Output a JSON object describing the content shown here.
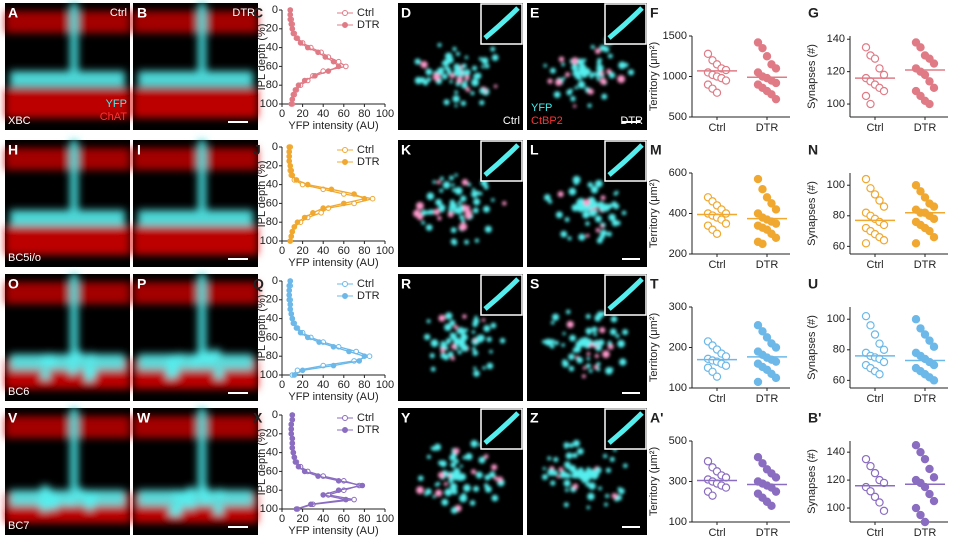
{
  "figure": {
    "rows": [
      {
        "panels": [
          "A",
          "B",
          "C",
          "D",
          "E",
          "F",
          "G"
        ],
        "cell_type": "XBC"
      },
      {
        "panels": [
          "H",
          "I",
          "J",
          "K",
          "L",
          "M",
          "N"
        ],
        "cell_type": "BC5i/o"
      },
      {
        "panels": [
          "O",
          "P",
          "Q",
          "R",
          "S",
          "T",
          "U"
        ],
        "cell_type": "BC6"
      },
      {
        "panels": [
          "V",
          "W",
          "X",
          "Y",
          "Z",
          "A'",
          "B'"
        ],
        "cell_type": "BC7"
      }
    ],
    "first_row_labels": {
      "a_condition": "Ctrl",
      "b_condition": "DTR",
      "a_stain": [
        "YFP",
        "ChAT"
      ],
      "d_condition": "Ctrl",
      "e_stain": [
        "YFP",
        "CtBP2"
      ],
      "e_condition": "DTR"
    }
  },
  "chart_data": [
    {
      "type": "profile",
      "xlabel": "YFP intensity (AU)",
      "ylabel": "IPL depth (%)",
      "legend": "upper right",
      "y": [
        0,
        5,
        10,
        15,
        20,
        25,
        30,
        35,
        40,
        45,
        50,
        55,
        60,
        65,
        70,
        75,
        80,
        85,
        90,
        95,
        100
      ],
      "series": [
        {
          "name": "Ctrl",
          "color": "#e07b86",
          "filled": false,
          "values": [
            8,
            8,
            9,
            10,
            10,
            12,
            15,
            20,
            28,
            38,
            45,
            55,
            62,
            40,
            30,
            25,
            18,
            14,
            12,
            10,
            10
          ]
        },
        {
          "name": "DTR",
          "color": "#e07b86",
          "filled": true,
          "values": [
            8,
            8,
            8,
            9,
            10,
            11,
            14,
            18,
            25,
            35,
            42,
            50,
            55,
            45,
            32,
            22,
            16,
            13,
            11,
            10,
            9
          ]
        }
      ],
      "xlim": [
        0,
        100
      ],
      "xticks": [
        0,
        20,
        40,
        60,
        80,
        100
      ],
      "ylim": [
        0,
        100
      ],
      "yticks": [
        0,
        20,
        40,
        60,
        80,
        100
      ]
    },
    {
      "type": "strip",
      "ylabel": "Territory (μm²)",
      "categories": [
        "Ctrl",
        "DTR"
      ],
      "color": "#e07b86",
      "filled": [
        false,
        true
      ],
      "values": [
        [
          1280,
          1200,
          1150,
          1100,
          1080,
          1050,
          1020,
          1000,
          980,
          950,
          900,
          850,
          800
        ],
        [
          1420,
          1350,
          1250,
          1150,
          1100,
          1050,
          1000,
          980,
          950,
          920,
          900,
          860,
          820,
          780,
          720
        ]
      ],
      "means": [
        1070,
        990
      ],
      "ylim": [
        500,
        1500
      ],
      "yticks": [
        500,
        1000,
        1500
      ]
    },
    {
      "type": "strip",
      "ylabel": "Synapses (#)",
      "categories": [
        "Ctrl",
        "DTR"
      ],
      "color": "#e07b86",
      "filled": [
        false,
        true
      ],
      "values": [
        [
          135,
          130,
          128,
          122,
          118,
          116,
          114,
          112,
          110,
          108,
          105,
          100
        ],
        [
          138,
          135,
          130,
          128,
          125,
          122,
          120,
          118,
          114,
          110,
          108,
          105,
          102,
          100
        ]
      ],
      "means": [
        116,
        121
      ],
      "ylim": [
        92,
        142
      ],
      "yticks": [
        100,
        120,
        140
      ]
    },
    {
      "type": "profile",
      "xlabel": "YFP intensity (AU)",
      "ylabel": "IPL depth (%)",
      "legend": "upper right",
      "y": [
        0,
        5,
        10,
        15,
        20,
        25,
        30,
        35,
        40,
        45,
        50,
        55,
        60,
        65,
        70,
        75,
        80,
        85,
        90,
        95,
        100
      ],
      "series": [
        {
          "name": "Ctrl",
          "color": "#f0a830",
          "filled": false,
          "values": [
            8,
            7,
            7,
            7,
            8,
            8,
            9,
            12,
            20,
            40,
            60,
            88,
            70,
            45,
            38,
            25,
            18,
            12,
            10,
            9,
            8
          ]
        },
        {
          "name": "DTR",
          "color": "#f0a830",
          "filled": true,
          "values": [
            7,
            7,
            7,
            7,
            8,
            9,
            10,
            14,
            25,
            48,
            70,
            80,
            60,
            40,
            30,
            22,
            15,
            12,
            10,
            9,
            8
          ]
        }
      ],
      "xlim": [
        0,
        100
      ],
      "xticks": [
        0,
        20,
        40,
        60,
        80,
        100
      ],
      "ylim": [
        0,
        100
      ],
      "yticks": [
        0,
        20,
        40,
        60,
        80,
        100
      ]
    },
    {
      "type": "strip",
      "ylabel": "Territory (μm²)",
      "categories": [
        "Ctrl",
        "DTR"
      ],
      "color": "#f0a830",
      "filled": [
        false,
        true
      ],
      "values": [
        [
          480,
          460,
          440,
          420,
          400,
          400,
          390,
          380,
          370,
          350,
          340,
          320,
          300
        ],
        [
          570,
          520,
          480,
          450,
          420,
          400,
          380,
          370,
          360,
          350,
          340,
          330,
          320,
          300,
          280,
          260,
          250
        ]
      ],
      "means": [
        395,
        375
      ],
      "ylim": [
        200,
        600
      ],
      "yticks": [
        200,
        400,
        600
      ]
    },
    {
      "type": "strip",
      "ylabel": "Synapses (#)",
      "categories": [
        "Ctrl",
        "DTR"
      ],
      "color": "#f0a830",
      "filled": [
        false,
        true
      ],
      "values": [
        [
          104,
          98,
          94,
          90,
          86,
          82,
          80,
          78,
          76,
          74,
          72,
          70,
          68,
          66,
          64,
          62
        ],
        [
          100,
          96,
          92,
          88,
          86,
          84,
          82,
          82,
          80,
          78,
          76,
          74,
          72,
          70,
          66,
          62
        ]
      ],
      "means": [
        77,
        82
      ],
      "ylim": [
        55,
        108
      ],
      "yticks": [
        60,
        80,
        100
      ]
    },
    {
      "type": "profile",
      "xlabel": "YFP intensity (AU)",
      "ylabel": "IPL depth (%)",
      "legend": "upper right",
      "y": [
        0,
        5,
        10,
        15,
        20,
        25,
        30,
        35,
        40,
        45,
        50,
        55,
        60,
        65,
        70,
        75,
        80,
        85,
        90,
        95,
        100
      ],
      "series": [
        {
          "name": "Ctrl",
          "color": "#6cb8e8",
          "filled": false,
          "values": [
            8,
            8,
            7,
            7,
            8,
            8,
            8,
            9,
            10,
            12,
            15,
            20,
            28,
            40,
            55,
            72,
            85,
            70,
            40,
            15,
            10
          ]
        },
        {
          "name": "DTR",
          "color": "#6cb8e8",
          "filled": true,
          "values": [
            8,
            7,
            7,
            7,
            7,
            8,
            8,
            9,
            10,
            11,
            14,
            18,
            25,
            36,
            50,
            65,
            80,
            75,
            50,
            20,
            12
          ]
        }
      ],
      "xlim": [
        0,
        100
      ],
      "xticks": [
        0,
        20,
        40,
        60,
        80,
        100
      ],
      "ylim": [
        0,
        100
      ],
      "yticks": [
        0,
        20,
        40,
        60,
        80,
        100
      ]
    },
    {
      "type": "strip",
      "ylabel": "Territory (μm²)",
      "categories": [
        "Ctrl",
        "DTR"
      ],
      "color": "#6cb8e8",
      "filled": [
        false,
        true
      ],
      "values": [
        [
          215,
          205,
          195,
          185,
          178,
          172,
          168,
          165,
          160,
          155,
          150,
          140,
          128
        ],
        [
          255,
          240,
          225,
          210,
          200,
          190,
          182,
          175,
          170,
          165,
          160,
          152,
          145,
          135,
          125,
          115
        ]
      ],
      "means": [
        170,
        177
      ],
      "ylim": [
        100,
        300
      ],
      "yticks": [
        100,
        200,
        300
      ]
    },
    {
      "type": "strip",
      "ylabel": "Synapses (#)",
      "categories": [
        "Ctrl",
        "DTR"
      ],
      "color": "#6cb8e8",
      "filled": [
        false,
        true
      ],
      "values": [
        [
          102,
          96,
          90,
          84,
          80,
          78,
          76,
          75,
          74,
          72,
          70,
          68,
          66,
          64
        ],
        [
          100,
          94,
          90,
          86,
          82,
          78,
          76,
          74,
          72,
          70,
          68,
          66,
          64,
          62,
          60
        ]
      ],
      "means": [
        76,
        73
      ],
      "ylim": [
        55,
        108
      ],
      "yticks": [
        60,
        80,
        100
      ]
    },
    {
      "type": "profile",
      "xlabel": "YFP intensity (AU)",
      "ylabel": "IPL depth (%)",
      "legend": "upper right",
      "y": [
        0,
        5,
        10,
        15,
        20,
        25,
        30,
        35,
        40,
        45,
        50,
        55,
        60,
        65,
        70,
        75,
        80,
        85,
        90,
        95,
        100
      ],
      "series": [
        {
          "name": "Ctrl",
          "color": "#8a6cc0",
          "filled": false,
          "values": [
            10,
            10,
            9,
            9,
            9,
            10,
            10,
            10,
            11,
            12,
            14,
            18,
            25,
            40,
            60,
            75,
            60,
            45,
            70,
            30,
            15
          ]
        },
        {
          "name": "DTR",
          "color": "#8a6cc0",
          "filled": true,
          "values": [
            10,
            10,
            9,
            9,
            9,
            10,
            10,
            10,
            11,
            12,
            13,
            16,
            22,
            35,
            55,
            78,
            55,
            40,
            62,
            28,
            14
          ]
        }
      ],
      "xlim": [
        0,
        100
      ],
      "xticks": [
        0,
        20,
        40,
        60,
        80,
        100
      ],
      "ylim": [
        0,
        100
      ],
      "yticks": [
        0,
        20,
        40,
        60,
        80,
        100
      ]
    },
    {
      "type": "strip",
      "ylabel": "Territory (μm²)",
      "categories": [
        "Ctrl",
        "DTR"
      ],
      "color": "#8a6cc0",
      "filled": [
        false,
        true
      ],
      "values": [
        [
          400,
          370,
          350,
          330,
          320,
          310,
          300,
          290,
          280,
          270,
          250,
          230
        ],
        [
          420,
          390,
          360,
          340,
          320,
          300,
          290,
          280,
          270,
          250,
          240,
          220,
          200,
          180
        ]
      ],
      "means": [
        305,
        285
      ],
      "ylim": [
        100,
        500
      ],
      "yticks": [
        100,
        300,
        500
      ]
    },
    {
      "type": "strip",
      "ylabel": "Synapses (#)",
      "categories": [
        "Ctrl",
        "DTR"
      ],
      "color": "#8a6cc0",
      "filled": [
        false,
        true
      ],
      "values": [
        [
          135,
          130,
          125,
          120,
          118,
          115,
          112,
          108,
          104,
          98
        ],
        [
          145,
          140,
          135,
          128,
          122,
          120,
          118,
          115,
          110,
          105,
          100,
          95,
          90
        ]
      ],
      "means": [
        116,
        117
      ],
      "ylim": [
        90,
        148
      ],
      "yticks": [
        100,
        120,
        140
      ]
    }
  ]
}
